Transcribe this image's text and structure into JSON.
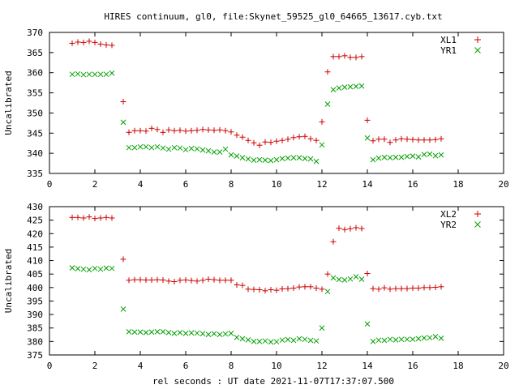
{
  "title": "HIRES continuum, gl0, file:Skynet_59525_gl0_64665_13617.cyb.txt",
  "xlabel": "rel seconds : UT date 2021-11-07T17:37:07.500",
  "colors": {
    "plus_series": "#cc0000",
    "x_series": "#00a000",
    "axes": "#000000"
  },
  "chart_data": [
    {
      "type": "scatter",
      "ylabel": "Uncalibrated",
      "xlim": [
        0,
        20
      ],
      "ylim": [
        335,
        370
      ],
      "xticks": [
        0,
        2,
        4,
        6,
        8,
        10,
        12,
        14,
        16,
        18,
        20
      ],
      "yticks": [
        335,
        340,
        345,
        350,
        355,
        360,
        365,
        370
      ],
      "legend_position": "top-right",
      "grid": false,
      "x": [
        1.0,
        1.25,
        1.5,
        1.75,
        2.0,
        2.25,
        2.5,
        2.75,
        3.0,
        3.25,
        3.5,
        3.75,
        4.0,
        4.25,
        4.5,
        4.75,
        5.0,
        5.25,
        5.5,
        5.75,
        6.0,
        6.25,
        6.5,
        6.75,
        7.0,
        7.25,
        7.5,
        7.75,
        8.0,
        8.25,
        8.5,
        8.75,
        9.0,
        9.25,
        9.5,
        9.75,
        10.0,
        10.25,
        10.5,
        10.75,
        11.0,
        11.25,
        11.5,
        11.75,
        12.0,
        12.25,
        12.5,
        12.75,
        13.0,
        13.25,
        13.5,
        13.75,
        14.0,
        14.25,
        14.5,
        14.75,
        15.0,
        15.25,
        15.5,
        15.75,
        16.0,
        16.25,
        16.5,
        16.75,
        17.0,
        17.25,
        17.5,
        17.75,
        18.0,
        18.25,
        18.5,
        18.75,
        19.0,
        19.25,
        19.5,
        19.75
      ],
      "series": [
        {
          "name": "XL1",
          "marker": "plus",
          "values": [
            367.3,
            367.6,
            367.5,
            367.8,
            367.5,
            367.1,
            366.9,
            366.8,
            null,
            352.8,
            345.2,
            345.6,
            345.6,
            345.5,
            346.2,
            345.9,
            345.2,
            345.8,
            345.6,
            345.7,
            345.5,
            345.6,
            345.7,
            345.9,
            345.8,
            345.7,
            345.8,
            345.6,
            345.3,
            344.5,
            344.0,
            343.2,
            342.6,
            342.0,
            342.8,
            342.7,
            343.0,
            343.2,
            343.5,
            343.9,
            344.1,
            344.2,
            343.6,
            343.2,
            347.8,
            360.2,
            364.0,
            364.0,
            364.2,
            363.8,
            363.8,
            364.0,
            348.2,
            343.1,
            343.5,
            343.5,
            342.7,
            343.3,
            343.6,
            343.5,
            343.4,
            343.3,
            343.3,
            343.3,
            343.4,
            343.6,
            null,
            null,
            null,
            null,
            null,
            null,
            null,
            null,
            null,
            null
          ]
        },
        {
          "name": "YR1",
          "marker": "cross",
          "values": [
            359.6,
            359.7,
            359.5,
            359.6,
            359.6,
            359.6,
            359.6,
            359.9,
            null,
            347.7,
            341.4,
            341.4,
            341.6,
            341.6,
            341.4,
            341.6,
            341.3,
            341.0,
            341.4,
            341.3,
            340.9,
            341.2,
            341.1,
            340.8,
            340.6,
            340.3,
            340.3,
            341.0,
            339.6,
            339.3,
            338.9,
            338.6,
            338.3,
            338.4,
            338.3,
            338.2,
            338.4,
            338.7,
            338.8,
            338.9,
            338.9,
            338.7,
            338.6,
            338.0,
            342.1,
            352.2,
            355.8,
            356.2,
            356.4,
            356.5,
            356.6,
            356.7,
            343.8,
            338.4,
            338.8,
            339.0,
            338.9,
            339.0,
            339.0,
            339.2,
            339.3,
            339.1,
            339.7,
            339.8,
            339.4,
            339.6,
            null,
            null,
            null,
            null,
            null,
            null,
            null,
            null,
            null,
            null
          ]
        }
      ]
    },
    {
      "type": "scatter",
      "ylabel": "Uncalibrated",
      "xlim": [
        0,
        20
      ],
      "ylim": [
        375,
        430
      ],
      "xticks": [
        0,
        2,
        4,
        6,
        8,
        10,
        12,
        14,
        16,
        18,
        20
      ],
      "yticks": [
        375,
        380,
        385,
        390,
        395,
        400,
        405,
        410,
        415,
        420,
        425,
        430
      ],
      "legend_position": "top-right",
      "grid": false,
      "x": [
        1.0,
        1.25,
        1.5,
        1.75,
        2.0,
        2.25,
        2.5,
        2.75,
        3.0,
        3.25,
        3.5,
        3.75,
        4.0,
        4.25,
        4.5,
        4.75,
        5.0,
        5.25,
        5.5,
        5.75,
        6.0,
        6.25,
        6.5,
        6.75,
        7.0,
        7.25,
        7.5,
        7.75,
        8.0,
        8.25,
        8.5,
        8.75,
        9.0,
        9.25,
        9.5,
        9.75,
        10.0,
        10.25,
        10.5,
        10.75,
        11.0,
        11.25,
        11.5,
        11.75,
        12.0,
        12.25,
        12.5,
        12.75,
        13.0,
        13.25,
        13.5,
        13.75,
        14.0,
        14.25,
        14.5,
        14.75,
        15.0,
        15.25,
        15.5,
        15.75,
        16.0,
        16.25,
        16.5,
        16.75,
        17.0,
        17.25,
        17.5,
        17.75,
        18.0,
        18.25,
        18.5,
        18.75,
        19.0,
        19.25,
        19.5,
        19.75
      ],
      "series": [
        {
          "name": "XL2",
          "marker": "plus",
          "values": [
            426.0,
            426.0,
            425.8,
            426.2,
            425.6,
            425.8,
            426.0,
            425.8,
            null,
            410.5,
            402.7,
            402.9,
            402.9,
            402.8,
            402.8,
            402.9,
            402.8,
            402.4,
            402.2,
            402.7,
            402.8,
            402.6,
            402.4,
            402.7,
            403.1,
            402.9,
            402.7,
            402.7,
            402.7,
            401.0,
            400.8,
            399.4,
            399.3,
            399.2,
            398.8,
            399.2,
            399.0,
            399.5,
            399.6,
            399.8,
            400.2,
            400.3,
            400.3,
            399.8,
            399.4,
            405.0,
            417.0,
            422.0,
            421.5,
            421.8,
            422.2,
            421.9,
            405.2,
            399.6,
            399.4,
            399.9,
            399.4,
            399.6,
            399.6,
            399.6,
            399.8,
            399.8,
            400.0,
            400.0,
            400.1,
            400.3,
            null,
            null,
            null,
            null,
            null,
            null,
            null,
            null,
            null,
            null
          ]
        },
        {
          "name": "YR2",
          "marker": "cross",
          "values": [
            407.3,
            407.0,
            406.8,
            406.6,
            407.1,
            406.8,
            407.2,
            407.1,
            null,
            392.0,
            383.6,
            383.5,
            383.5,
            383.3,
            383.5,
            383.6,
            383.6,
            383.3,
            383.0,
            383.3,
            383.0,
            383.2,
            383.1,
            382.9,
            382.6,
            382.9,
            382.6,
            382.8,
            383.0,
            381.5,
            381.0,
            380.6,
            380.0,
            380.0,
            380.2,
            379.8,
            379.9,
            380.5,
            380.7,
            380.4,
            381.0,
            380.8,
            380.4,
            380.2,
            385.0,
            398.5,
            403.6,
            403.0,
            402.8,
            403.2,
            404.0,
            403.1,
            386.5,
            380.0,
            380.5,
            380.4,
            380.8,
            380.6,
            380.8,
            380.8,
            380.8,
            381.0,
            381.3,
            381.4,
            381.8,
            381.2,
            null,
            null,
            null,
            null,
            null,
            null,
            null,
            null,
            null,
            null
          ]
        }
      ]
    }
  ]
}
